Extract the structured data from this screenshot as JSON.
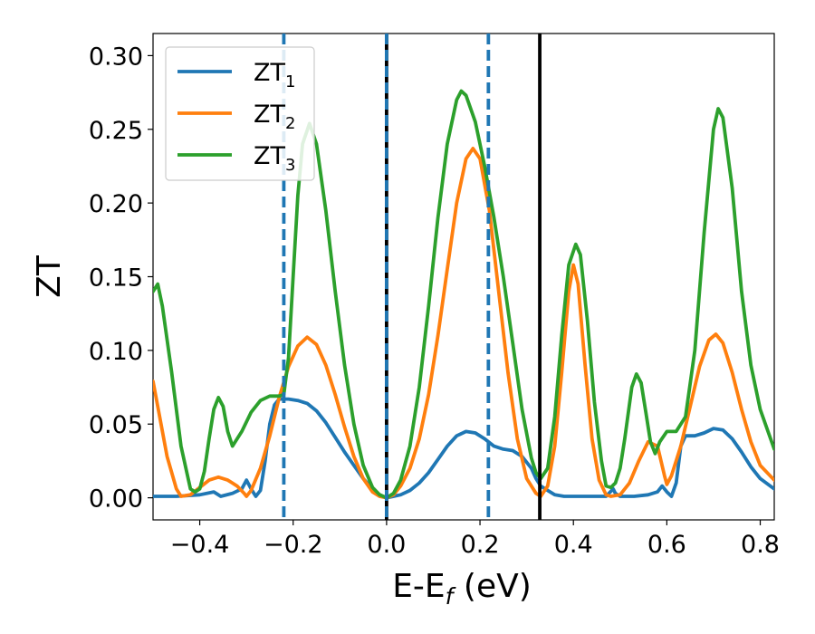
{
  "chart_data": {
    "type": "line",
    "xlabel_main": "E-E",
    "xlabel_sub": "f",
    "xlabel_unit": " (eV)",
    "ylabel": "ZT",
    "xlim": [
      -0.5,
      0.83
    ],
    "ylim": [
      -0.015,
      0.315
    ],
    "xticks": [
      -0.4,
      -0.2,
      0.0,
      0.2,
      0.4,
      0.6,
      0.8
    ],
    "xtick_labels": [
      "−0.4",
      "−0.2",
      "0.0",
      "0.2",
      "0.4",
      "0.6",
      "0.8"
    ],
    "yticks": [
      0.0,
      0.05,
      0.1,
      0.15,
      0.2,
      0.25,
      0.3
    ],
    "ytick_labels": [
      "0.00",
      "0.05",
      "0.10",
      "0.15",
      "0.20",
      "0.25",
      "0.30"
    ],
    "grid": false,
    "legend_position": "top-left",
    "series": [
      {
        "name": "ZT",
        "subscript": "1",
        "color": "#1f77b4",
        "points": [
          [
            -0.5,
            0.001
          ],
          [
            -0.45,
            0.001
          ],
          [
            -0.4,
            0.002
          ],
          [
            -0.37,
            0.004
          ],
          [
            -0.355,
            0.001
          ],
          [
            -0.33,
            0.003
          ],
          [
            -0.31,
            0.006
          ],
          [
            -0.3,
            0.012
          ],
          [
            -0.29,
            0.006
          ],
          [
            -0.28,
            0.001
          ],
          [
            -0.27,
            0.005
          ],
          [
            -0.26,
            0.025
          ],
          [
            -0.25,
            0.05
          ],
          [
            -0.24,
            0.063
          ],
          [
            -0.23,
            0.067
          ],
          [
            -0.21,
            0.067
          ],
          [
            -0.19,
            0.066
          ],
          [
            -0.17,
            0.064
          ],
          [
            -0.15,
            0.059
          ],
          [
            -0.13,
            0.051
          ],
          [
            -0.11,
            0.041
          ],
          [
            -0.09,
            0.031
          ],
          [
            -0.07,
            0.022
          ],
          [
            -0.05,
            0.013
          ],
          [
            -0.03,
            0.006
          ],
          [
            -0.015,
            0.002
          ],
          [
            0.0,
            0.0
          ],
          [
            0.015,
            0.001
          ],
          [
            0.03,
            0.002
          ],
          [
            0.05,
            0.005
          ],
          [
            0.07,
            0.01
          ],
          [
            0.09,
            0.017
          ],
          [
            0.11,
            0.026
          ],
          [
            0.13,
            0.035
          ],
          [
            0.15,
            0.042
          ],
          [
            0.17,
            0.045
          ],
          [
            0.19,
            0.044
          ],
          [
            0.21,
            0.04
          ],
          [
            0.23,
            0.035
          ],
          [
            0.25,
            0.033
          ],
          [
            0.27,
            0.032
          ],
          [
            0.29,
            0.028
          ],
          [
            0.31,
            0.02
          ],
          [
            0.32,
            0.013
          ],
          [
            0.33,
            0.008
          ],
          [
            0.345,
            0.005
          ],
          [
            0.36,
            0.002
          ],
          [
            0.38,
            0.001
          ],
          [
            0.4,
            0.001
          ],
          [
            0.43,
            0.001
          ],
          [
            0.45,
            0.001
          ],
          [
            0.47,
            0.001
          ],
          [
            0.485,
            0.006
          ],
          [
            0.49,
            0.003
          ],
          [
            0.5,
            0.001
          ],
          [
            0.53,
            0.001
          ],
          [
            0.56,
            0.002
          ],
          [
            0.58,
            0.004
          ],
          [
            0.59,
            0.008
          ],
          [
            0.6,
            0.004
          ],
          [
            0.61,
            0.001
          ],
          [
            0.62,
            0.01
          ],
          [
            0.63,
            0.035
          ],
          [
            0.64,
            0.042
          ],
          [
            0.66,
            0.042
          ],
          [
            0.68,
            0.044
          ],
          [
            0.7,
            0.047
          ],
          [
            0.72,
            0.046
          ],
          [
            0.74,
            0.04
          ],
          [
            0.76,
            0.031
          ],
          [
            0.78,
            0.021
          ],
          [
            0.8,
            0.013
          ],
          [
            0.83,
            0.006
          ]
        ]
      },
      {
        "name": "ZT",
        "subscript": "2",
        "color": "#ff7f0e",
        "points": [
          [
            -0.5,
            0.079
          ],
          [
            -0.49,
            0.062
          ],
          [
            -0.47,
            0.028
          ],
          [
            -0.45,
            0.006
          ],
          [
            -0.44,
            0.001
          ],
          [
            -0.42,
            0.002
          ],
          [
            -0.4,
            0.007
          ],
          [
            -0.38,
            0.012
          ],
          [
            -0.36,
            0.014
          ],
          [
            -0.34,
            0.012
          ],
          [
            -0.32,
            0.008
          ],
          [
            -0.305,
            0.003
          ],
          [
            -0.3,
            0.001
          ],
          [
            -0.29,
            0.005
          ],
          [
            -0.27,
            0.02
          ],
          [
            -0.25,
            0.042
          ],
          [
            -0.23,
            0.068
          ],
          [
            -0.21,
            0.089
          ],
          [
            -0.19,
            0.103
          ],
          [
            -0.17,
            0.109
          ],
          [
            -0.15,
            0.104
          ],
          [
            -0.13,
            0.09
          ],
          [
            -0.11,
            0.07
          ],
          [
            -0.09,
            0.048
          ],
          [
            -0.07,
            0.028
          ],
          [
            -0.05,
            0.013
          ],
          [
            -0.03,
            0.004
          ],
          [
            -0.015,
            0.001
          ],
          [
            0.0,
            0.0
          ],
          [
            0.015,
            0.002
          ],
          [
            0.03,
            0.008
          ],
          [
            0.05,
            0.02
          ],
          [
            0.07,
            0.04
          ],
          [
            0.09,
            0.07
          ],
          [
            0.11,
            0.11
          ],
          [
            0.13,
            0.155
          ],
          [
            0.15,
            0.2
          ],
          [
            0.17,
            0.23
          ],
          [
            0.185,
            0.237
          ],
          [
            0.2,
            0.23
          ],
          [
            0.22,
            0.195
          ],
          [
            0.24,
            0.14
          ],
          [
            0.26,
            0.085
          ],
          [
            0.28,
            0.04
          ],
          [
            0.3,
            0.013
          ],
          [
            0.32,
            0.003
          ],
          [
            0.33,
            0.001
          ],
          [
            0.345,
            0.008
          ],
          [
            0.36,
            0.035
          ],
          [
            0.375,
            0.085
          ],
          [
            0.39,
            0.14
          ],
          [
            0.4,
            0.158
          ],
          [
            0.41,
            0.145
          ],
          [
            0.425,
            0.09
          ],
          [
            0.44,
            0.04
          ],
          [
            0.455,
            0.012
          ],
          [
            0.47,
            0.002
          ],
          [
            0.48,
            0.001
          ],
          [
            0.5,
            0.002
          ],
          [
            0.52,
            0.01
          ],
          [
            0.54,
            0.025
          ],
          [
            0.56,
            0.038
          ],
          [
            0.58,
            0.035
          ],
          [
            0.595,
            0.015
          ],
          [
            0.6,
            0.009
          ],
          [
            0.61,
            0.015
          ],
          [
            0.63,
            0.035
          ],
          [
            0.65,
            0.062
          ],
          [
            0.67,
            0.089
          ],
          [
            0.69,
            0.107
          ],
          [
            0.705,
            0.111
          ],
          [
            0.72,
            0.105
          ],
          [
            0.74,
            0.085
          ],
          [
            0.76,
            0.06
          ],
          [
            0.78,
            0.038
          ],
          [
            0.8,
            0.022
          ],
          [
            0.83,
            0.012
          ]
        ]
      },
      {
        "name": "ZT",
        "subscript": "3",
        "color": "#2ca02c",
        "points": [
          [
            -0.5,
            0.14
          ],
          [
            -0.49,
            0.145
          ],
          [
            -0.48,
            0.13
          ],
          [
            -0.46,
            0.085
          ],
          [
            -0.44,
            0.035
          ],
          [
            -0.42,
            0.006
          ],
          [
            -0.41,
            0.004
          ],
          [
            -0.4,
            0.006
          ],
          [
            -0.39,
            0.018
          ],
          [
            -0.38,
            0.04
          ],
          [
            -0.37,
            0.06
          ],
          [
            -0.36,
            0.068
          ],
          [
            -0.35,
            0.062
          ],
          [
            -0.34,
            0.045
          ],
          [
            -0.33,
            0.035
          ],
          [
            -0.31,
            0.045
          ],
          [
            -0.29,
            0.058
          ],
          [
            -0.27,
            0.066
          ],
          [
            -0.25,
            0.069
          ],
          [
            -0.23,
            0.069
          ],
          [
            -0.22,
            0.07
          ],
          [
            -0.21,
            0.095
          ],
          [
            -0.2,
            0.15
          ],
          [
            -0.19,
            0.205
          ],
          [
            -0.18,
            0.24
          ],
          [
            -0.165,
            0.254
          ],
          [
            -0.15,
            0.24
          ],
          [
            -0.13,
            0.195
          ],
          [
            -0.11,
            0.14
          ],
          [
            -0.09,
            0.09
          ],
          [
            -0.07,
            0.05
          ],
          [
            -0.05,
            0.022
          ],
          [
            -0.03,
            0.007
          ],
          [
            -0.015,
            0.002
          ],
          [
            0.0,
            0.0
          ],
          [
            0.015,
            0.003
          ],
          [
            0.03,
            0.012
          ],
          [
            0.05,
            0.035
          ],
          [
            0.07,
            0.075
          ],
          [
            0.09,
            0.13
          ],
          [
            0.11,
            0.19
          ],
          [
            0.13,
            0.24
          ],
          [
            0.15,
            0.27
          ],
          [
            0.16,
            0.276
          ],
          [
            0.17,
            0.273
          ],
          [
            0.19,
            0.255
          ],
          [
            0.21,
            0.225
          ],
          [
            0.23,
            0.19
          ],
          [
            0.25,
            0.15
          ],
          [
            0.27,
            0.105
          ],
          [
            0.29,
            0.06
          ],
          [
            0.31,
            0.027
          ],
          [
            0.32,
            0.017
          ],
          [
            0.33,
            0.013
          ],
          [
            0.345,
            0.02
          ],
          [
            0.36,
            0.055
          ],
          [
            0.375,
            0.11
          ],
          [
            0.39,
            0.158
          ],
          [
            0.405,
            0.172
          ],
          [
            0.415,
            0.165
          ],
          [
            0.43,
            0.12
          ],
          [
            0.445,
            0.065
          ],
          [
            0.46,
            0.025
          ],
          [
            0.47,
            0.008
          ],
          [
            0.48,
            0.007
          ],
          [
            0.49,
            0.01
          ],
          [
            0.5,
            0.02
          ],
          [
            0.51,
            0.04
          ],
          [
            0.525,
            0.075
          ],
          [
            0.535,
            0.084
          ],
          [
            0.545,
            0.078
          ],
          [
            0.555,
            0.058
          ],
          [
            0.565,
            0.038
          ],
          [
            0.575,
            0.03
          ],
          [
            0.585,
            0.038
          ],
          [
            0.6,
            0.045
          ],
          [
            0.62,
            0.045
          ],
          [
            0.64,
            0.055
          ],
          [
            0.66,
            0.1
          ],
          [
            0.68,
            0.18
          ],
          [
            0.7,
            0.25
          ],
          [
            0.71,
            0.264
          ],
          [
            0.72,
            0.258
          ],
          [
            0.74,
            0.21
          ],
          [
            0.76,
            0.14
          ],
          [
            0.78,
            0.09
          ],
          [
            0.8,
            0.06
          ],
          [
            0.83,
            0.033
          ]
        ]
      }
    ],
    "vlines": [
      {
        "x": -0.22,
        "color": "#1f77b4",
        "style": "dashed"
      },
      {
        "x": 0.0,
        "color": "#000000",
        "style": "solid"
      },
      {
        "x": 0.0,
        "color": "#1f77b4",
        "style": "dashed"
      },
      {
        "x": 0.218,
        "color": "#1f77b4",
        "style": "dashed"
      },
      {
        "x": 0.328,
        "color": "#000000",
        "style": "solid"
      }
    ]
  }
}
